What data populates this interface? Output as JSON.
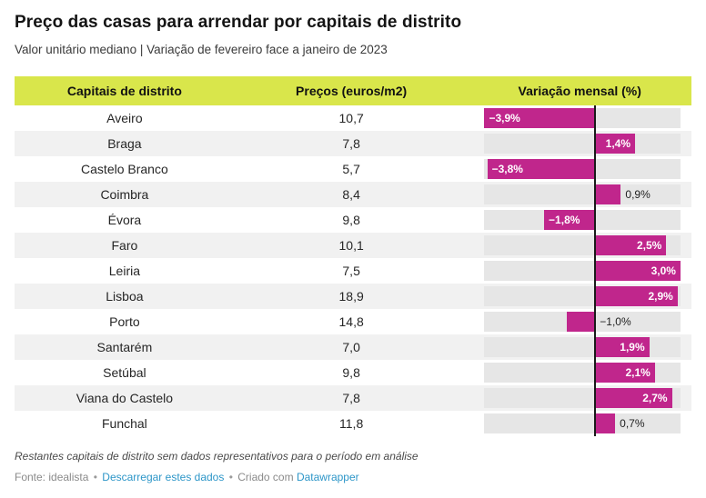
{
  "header": {
    "title": "Preço das casas para arrendar por capitais de distrito",
    "subtitle": "Valor unitário mediano | Variação de fevereiro face a janeiro de 2023"
  },
  "table": {
    "columns": [
      "Capitais de distrito",
      "Preços (euros/m2)",
      "Variação mensal (%)"
    ]
  },
  "chart_data": {
    "type": "table",
    "bar_column": "Variação mensal (%)",
    "axis_range": [
      -3.9,
      3.0
    ],
    "legend_position": "none",
    "rows": [
      {
        "city": "Aveiro",
        "price": "10,7",
        "variation": -3.9,
        "variation_label": "−3,9%",
        "label_position": "inside"
      },
      {
        "city": "Braga",
        "price": "7,8",
        "variation": 1.4,
        "variation_label": "1,4%",
        "label_position": "inside"
      },
      {
        "city": "Castelo Branco",
        "price": "5,7",
        "variation": -3.8,
        "variation_label": "−3,8%",
        "label_position": "inside"
      },
      {
        "city": "Coimbra",
        "price": "8,4",
        "variation": 0.9,
        "variation_label": "0,9%",
        "label_position": "outside"
      },
      {
        "city": "Évora",
        "price": "9,8",
        "variation": -1.8,
        "variation_label": "−1,8%",
        "label_position": "inside"
      },
      {
        "city": "Faro",
        "price": "10,1",
        "variation": 2.5,
        "variation_label": "2,5%",
        "label_position": "inside"
      },
      {
        "city": "Leiria",
        "price": "7,5",
        "variation": 3.0,
        "variation_label": "3,0%",
        "label_position": "inside"
      },
      {
        "city": "Lisboa",
        "price": "18,9",
        "variation": 2.9,
        "variation_label": "2,9%",
        "label_position": "inside"
      },
      {
        "city": "Porto",
        "price": "14,8",
        "variation": -1.0,
        "variation_label": "−1,0%",
        "label_position": "outside"
      },
      {
        "city": "Santarém",
        "price": "7,0",
        "variation": 1.9,
        "variation_label": "1,9%",
        "label_position": "inside"
      },
      {
        "city": "Setúbal",
        "price": "9,8",
        "variation": 2.1,
        "variation_label": "2,1%",
        "label_position": "inside"
      },
      {
        "city": "Viana do Castelo",
        "price": "7,8",
        "variation": 2.7,
        "variation_label": "2,7%",
        "label_position": "inside"
      },
      {
        "city": "Funchal",
        "price": "11,8",
        "variation": 0.7,
        "variation_label": "0,7%",
        "label_position": "outside"
      }
    ]
  },
  "footer": {
    "note": "Restantes capitais de distrito sem dados representativos para o período em análise",
    "source_label": "Fonte: idealista",
    "separator": "•",
    "download_link_label": "Descarregar estes dados",
    "created_with_label": "Criado com",
    "tool_link_label": "Datawrapper"
  },
  "colors": {
    "header_background": "#d9e64b",
    "bar": "#c0268c",
    "bar_track": "#e6e6e6",
    "row_alternate": "#f1f1f1",
    "zero_line": "#1a1a1a",
    "link": "#2d96c8"
  }
}
